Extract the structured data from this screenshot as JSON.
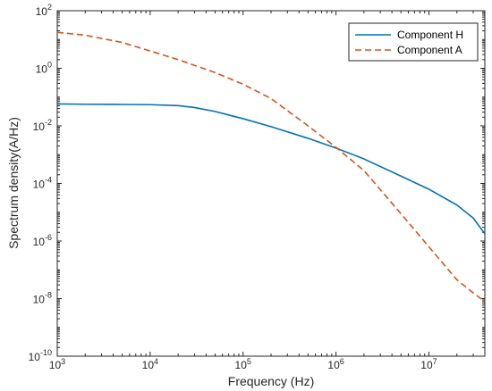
{
  "chart_data": {
    "type": "line",
    "xlabel": "Frequency (Hz)",
    "ylabel": "Spectrum density(A/Hz)",
    "x_scale": "log",
    "y_scale": "log",
    "xlim": [
      1000,
      40000000
    ],
    "ylim": [
      1e-10,
      100
    ],
    "grid": false,
    "legend_position": "top-right",
    "x_ticks": [
      {
        "value": 1000,
        "base": "10",
        "exp": "3"
      },
      {
        "value": 10000,
        "base": "10",
        "exp": "4"
      },
      {
        "value": 100000,
        "base": "10",
        "exp": "5"
      },
      {
        "value": 1000000,
        "base": "10",
        "exp": "6"
      },
      {
        "value": 10000000,
        "base": "10",
        "exp": "7"
      }
    ],
    "y_ticks": [
      {
        "value": 1e-10,
        "base": "10",
        "exp": "-10"
      },
      {
        "value": 1e-08,
        "base": "10",
        "exp": "-8"
      },
      {
        "value": 1e-06,
        "base": "10",
        "exp": "-6"
      },
      {
        "value": 0.0001,
        "base": "10",
        "exp": "-4"
      },
      {
        "value": 0.01,
        "base": "10",
        "exp": "-2"
      },
      {
        "value": 1,
        "base": "10",
        "exp": "0"
      },
      {
        "value": 100,
        "base": "10",
        "exp": "2"
      }
    ],
    "series": [
      {
        "name": "Component H",
        "color": "#0072bd",
        "style": "solid",
        "x": [
          1000,
          2000,
          5000,
          10000,
          20000,
          30000,
          50000,
          100000,
          200000,
          500000,
          1000000,
          2000000,
          5000000,
          10000000,
          20000000,
          30000000,
          40000000
        ],
        "y": [
          0.0577,
          0.0565,
          0.0555,
          0.0545,
          0.0505,
          0.0435,
          0.0316,
          0.0178,
          0.0094,
          0.0037,
          0.0017,
          0.00071,
          0.00018,
          6.3e-05,
          1.78e-05,
          6.3e-06,
          1.78e-06
        ]
      },
      {
        "name": "Component A",
        "color": "#d95319",
        "style": "dashed",
        "x": [
          1000,
          2000,
          5000,
          10000,
          20000,
          50000,
          100000,
          200000,
          500000,
          1000000,
          2000000,
          5000000,
          10000000,
          20000000,
          30000000,
          40000000
        ],
        "y": [
          17.8,
          14.1,
          7.9,
          4.0,
          2.0,
          0.71,
          0.28,
          0.089,
          0.01,
          0.0018,
          0.00028,
          8.9e-06,
          6.3e-07,
          4.5e-08,
          1.58e-08,
          7.9e-09
        ]
      }
    ]
  }
}
